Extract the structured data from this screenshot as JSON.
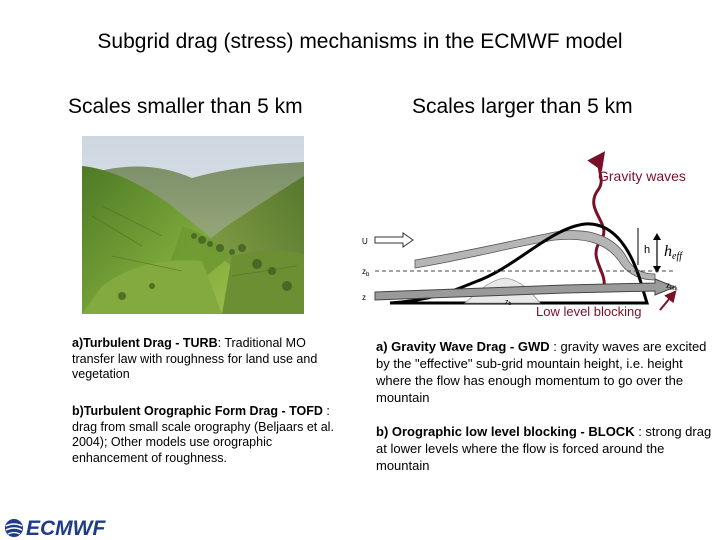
{
  "title": "Subgrid drag (stress) mechanisms in the ECMWF model",
  "left_heading": "Scales smaller than 5 km",
  "right_heading": "Scales larger than 5 km",
  "diagram": {
    "gravity_waves": "Gravity waves",
    "low_level_blocking": "Low level blocking",
    "label_u": "U",
    "label_zb": "z",
    "label_zb_sub": "b",
    "label_z": "z",
    "label_h": "h",
    "label_heff": "h",
    "label_heff_sub": "eff",
    "label_zblk": "z",
    "label_zblk_sub": "blk"
  },
  "left_text": {
    "a_label": "a)Turbulent Drag - TURB",
    "a_rest": ": Traditional MO transfer law with roughness for land use and vegetation",
    "b_label": "b)Turbulent Orographic Form Drag - TOFD",
    "b_rest": " : drag from small scale orography (Beljaars et al. 2004); Other models use orographic enhancement of roughness."
  },
  "right_text": {
    "a_label": "a) Gravity Wave Drag - GWD",
    "a_rest": " : gravity waves are excited by the  \"effective\" sub-grid  mountain height, i.e. height where the flow has enough momentum to go over  the mountain",
    "b_label": "b) Orographic low level blocking - BLOCK",
    "b_rest": " : strong drag at lower levels where the flow is forced   around the mountain"
  },
  "logo": "ECMWF",
  "colors": {
    "gravity_wave_arrow": "#7a1028",
    "logo_blue": "#1f3c88",
    "flow_grey": "#8a8a8a",
    "valley_green": "#5f8f2e"
  }
}
